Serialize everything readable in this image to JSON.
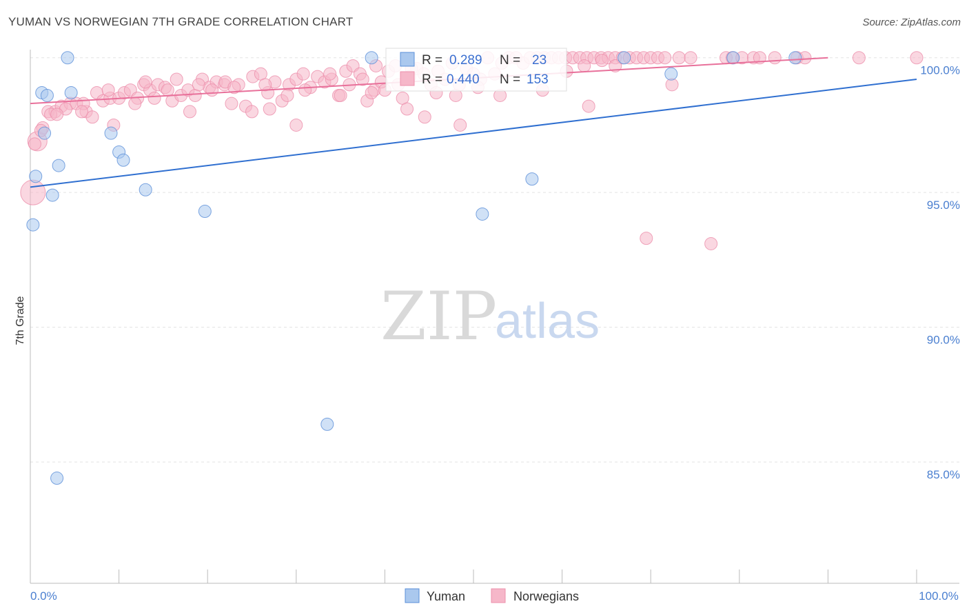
{
  "header": {
    "title": "YUMAN VS NORWEGIAN 7TH GRADE CORRELATION CHART",
    "source": "Source: ZipAtlas.com"
  },
  "stats": {
    "yuman": {
      "r_label": "R =",
      "r": "0.289",
      "n_label": "N =",
      "n": "23"
    },
    "norwegians": {
      "r_label": "R =",
      "r": "0.440",
      "n_label": "N =",
      "n": "153"
    }
  },
  "watermark": {
    "zip": "ZIP",
    "atlas": "atlas"
  },
  "colors": {
    "yuman_fill": "#aac8ee",
    "yuman_stroke": "#5b8fd8",
    "yuman_line": "#2f6fd0",
    "norw_fill": "#f6b7c9",
    "norw_stroke": "#ec8fab",
    "norw_line": "#e8709a",
    "tick": "#4a7fd0"
  },
  "chart_data": {
    "type": "scatter",
    "title": "YUMAN VS NORWEGIAN 7TH GRADE CORRELATION CHART",
    "xlabel": "",
    "ylabel": "7th Grade",
    "xlim": [
      0,
      100
    ],
    "ylim": [
      80.5,
      100.3
    ],
    "x_tick_labels": [
      {
        "value": 0,
        "label": "0.0%"
      },
      {
        "value": 100,
        "label": "100.0%"
      }
    ],
    "y_ticks": [
      {
        "value": 85,
        "label": "85.0%"
      },
      {
        "value": 90,
        "label": "90.0%"
      },
      {
        "value": 95,
        "label": "95.0%"
      },
      {
        "value": 100,
        "label": "100.0%"
      }
    ],
    "grid": true,
    "legend": {
      "position": "bottom-center",
      "entries": [
        "Yuman",
        "Norwegians"
      ]
    },
    "series": [
      {
        "name": "Yuman",
        "points": [
          [
            4.2,
            100
          ],
          [
            38.5,
            100
          ],
          [
            79.3,
            100
          ],
          [
            86.3,
            100
          ],
          [
            72.3,
            99.4
          ],
          [
            1.3,
            98.7
          ],
          [
            4.6,
            98.7
          ],
          [
            1.9,
            98.6
          ],
          [
            1.6,
            97.2
          ],
          [
            9.1,
            97.2
          ],
          [
            10.0,
            96.5
          ],
          [
            10.5,
            96.2
          ],
          [
            3.2,
            96.0
          ],
          [
            0.6,
            95.6
          ],
          [
            56.6,
            95.5
          ],
          [
            13.0,
            95.1
          ],
          [
            2.5,
            94.9
          ],
          [
            19.7,
            94.3
          ],
          [
            51.0,
            94.2
          ],
          [
            0.3,
            93.8
          ],
          [
            33.5,
            86.4
          ],
          [
            3.0,
            84.4
          ],
          [
            67.0,
            100
          ]
        ],
        "trend": {
          "x0": 0,
          "y0": 95.2,
          "x1": 100,
          "y1": 99.2
        }
      },
      {
        "name": "Norwegians",
        "points": [
          [
            0.3,
            95.0
          ],
          [
            0.8,
            96.9
          ],
          [
            1.4,
            97.4
          ],
          [
            2.0,
            98.0
          ],
          [
            2.8,
            98.0
          ],
          [
            3.5,
            98.2
          ],
          [
            4.5,
            98.3
          ],
          [
            5.2,
            98.3
          ],
          [
            6.3,
            98.0
          ],
          [
            7.5,
            98.7
          ],
          [
            8.2,
            98.4
          ],
          [
            9.0,
            98.5
          ],
          [
            9.4,
            97.5
          ],
          [
            10.0,
            98.5
          ],
          [
            10.6,
            98.7
          ],
          [
            11.3,
            98.8
          ],
          [
            12.1,
            98.5
          ],
          [
            12.8,
            99.0
          ],
          [
            13.5,
            98.8
          ],
          [
            14.4,
            99.0
          ],
          [
            15.2,
            98.9
          ],
          [
            16.0,
            98.4
          ],
          [
            17.0,
            98.6
          ],
          [
            17.8,
            98.8
          ],
          [
            18.6,
            98.6
          ],
          [
            19.4,
            99.2
          ],
          [
            20.2,
            98.9
          ],
          [
            21.0,
            99.1
          ],
          [
            21.9,
            99.0
          ],
          [
            22.7,
            98.3
          ],
          [
            23.5,
            99.0
          ],
          [
            24.3,
            98.2
          ],
          [
            25.1,
            99.3
          ],
          [
            26.0,
            99.4
          ],
          [
            26.8,
            98.7
          ],
          [
            27.6,
            99.1
          ],
          [
            28.4,
            98.4
          ],
          [
            29.2,
            99.0
          ],
          [
            30.0,
            99.2
          ],
          [
            30.8,
            99.4
          ],
          [
            31.6,
            98.9
          ],
          [
            32.4,
            99.3
          ],
          [
            33.2,
            99.1
          ],
          [
            34.0,
            99.2
          ],
          [
            34.8,
            98.6
          ],
          [
            35.6,
            99.5
          ],
          [
            36.4,
            99.7
          ],
          [
            37.2,
            99.4
          ],
          [
            38.0,
            98.4
          ],
          [
            38.8,
            98.8
          ],
          [
            39.6,
            99.1
          ],
          [
            40.4,
            99.5
          ],
          [
            41.2,
            99.7
          ],
          [
            42.0,
            98.5
          ],
          [
            42.8,
            99.3
          ],
          [
            43.6,
            99.6
          ],
          [
            44.4,
            99.4
          ],
          [
            45.2,
            99.0
          ],
          [
            46.0,
            99.5
          ],
          [
            46.8,
            99.2
          ],
          [
            47.6,
            99.8
          ],
          [
            48.4,
            99.0
          ],
          [
            49.2,
            99.6
          ],
          [
            50.0,
            99.4
          ],
          [
            50.8,
            99.2
          ],
          [
            51.6,
            100
          ],
          [
            52.4,
            99.4
          ],
          [
            53.2,
            99.8
          ],
          [
            54.0,
            100
          ],
          [
            54.8,
            100
          ],
          [
            55.6,
            99.8
          ],
          [
            56.4,
            100
          ],
          [
            57.2,
            100
          ],
          [
            58.0,
            100
          ],
          [
            58.8,
            100
          ],
          [
            59.6,
            100
          ],
          [
            60.4,
            100
          ],
          [
            61.2,
            100
          ],
          [
            62.0,
            100
          ],
          [
            62.8,
            100
          ],
          [
            63.6,
            100
          ],
          [
            64.4,
            100
          ],
          [
            65.2,
            100
          ],
          [
            66.0,
            100
          ],
          [
            66.8,
            100
          ],
          [
            67.6,
            100
          ],
          [
            68.4,
            100
          ],
          [
            69.2,
            100
          ],
          [
            70.0,
            100
          ],
          [
            70.8,
            100
          ],
          [
            71.6,
            100
          ],
          [
            72.4,
            99.0
          ],
          [
            73.2,
            100
          ],
          [
            74.5,
            100
          ],
          [
            78.5,
            100
          ],
          [
            79.2,
            100
          ],
          [
            80.3,
            100
          ],
          [
            81.6,
            100
          ],
          [
            82.3,
            100
          ],
          [
            84.0,
            100
          ],
          [
            86.5,
            100
          ],
          [
            87.4,
            100
          ],
          [
            93.5,
            100
          ],
          [
            100,
            100
          ],
          [
            63.0,
            98.2
          ],
          [
            69.5,
            93.3
          ],
          [
            76.8,
            93.1
          ],
          [
            48.5,
            97.5
          ],
          [
            44.5,
            97.8
          ],
          [
            30.0,
            97.5
          ],
          [
            25.0,
            98.0
          ],
          [
            18.0,
            98.0
          ],
          [
            7.0,
            97.8
          ],
          [
            53.0,
            98.6
          ],
          [
            40.0,
            98.8
          ],
          [
            36.0,
            99.0
          ],
          [
            2.3,
            97.9
          ],
          [
            4.0,
            98.1
          ],
          [
            6.0,
            98.3
          ],
          [
            13.0,
            99.1
          ],
          [
            16.5,
            99.2
          ],
          [
            22.0,
            99.1
          ],
          [
            27.0,
            98.1
          ],
          [
            33.8,
            99.4
          ],
          [
            37.5,
            99.2
          ],
          [
            41.5,
            99.0
          ],
          [
            45.8,
            98.7
          ],
          [
            48.0,
            98.6
          ],
          [
            50.5,
            98.9
          ],
          [
            57.8,
            98.8
          ],
          [
            60.5,
            99.5
          ],
          [
            62.5,
            99.7
          ],
          [
            64.5,
            99.9
          ],
          [
            66.0,
            99.7
          ],
          [
            42.5,
            98.1
          ],
          [
            38.5,
            98.7
          ],
          [
            35.0,
            98.6
          ],
          [
            31.0,
            98.8
          ],
          [
            29.0,
            98.6
          ],
          [
            26.5,
            99.0
          ],
          [
            23.0,
            98.9
          ],
          [
            20.5,
            98.8
          ],
          [
            19.0,
            99.0
          ],
          [
            15.5,
            98.8
          ],
          [
            14.0,
            98.5
          ],
          [
            11.8,
            98.3
          ],
          [
            8.8,
            98.8
          ],
          [
            5.8,
            98.0
          ],
          [
            3.0,
            97.9
          ],
          [
            1.2,
            97.3
          ],
          [
            0.5,
            96.8
          ],
          [
            39.0,
            99.7
          ],
          [
            43.0,
            99.6
          ]
        ],
        "trend": {
          "x0": 0,
          "y0": 98.3,
          "x1": 90,
          "y1": 100
        }
      }
    ]
  }
}
